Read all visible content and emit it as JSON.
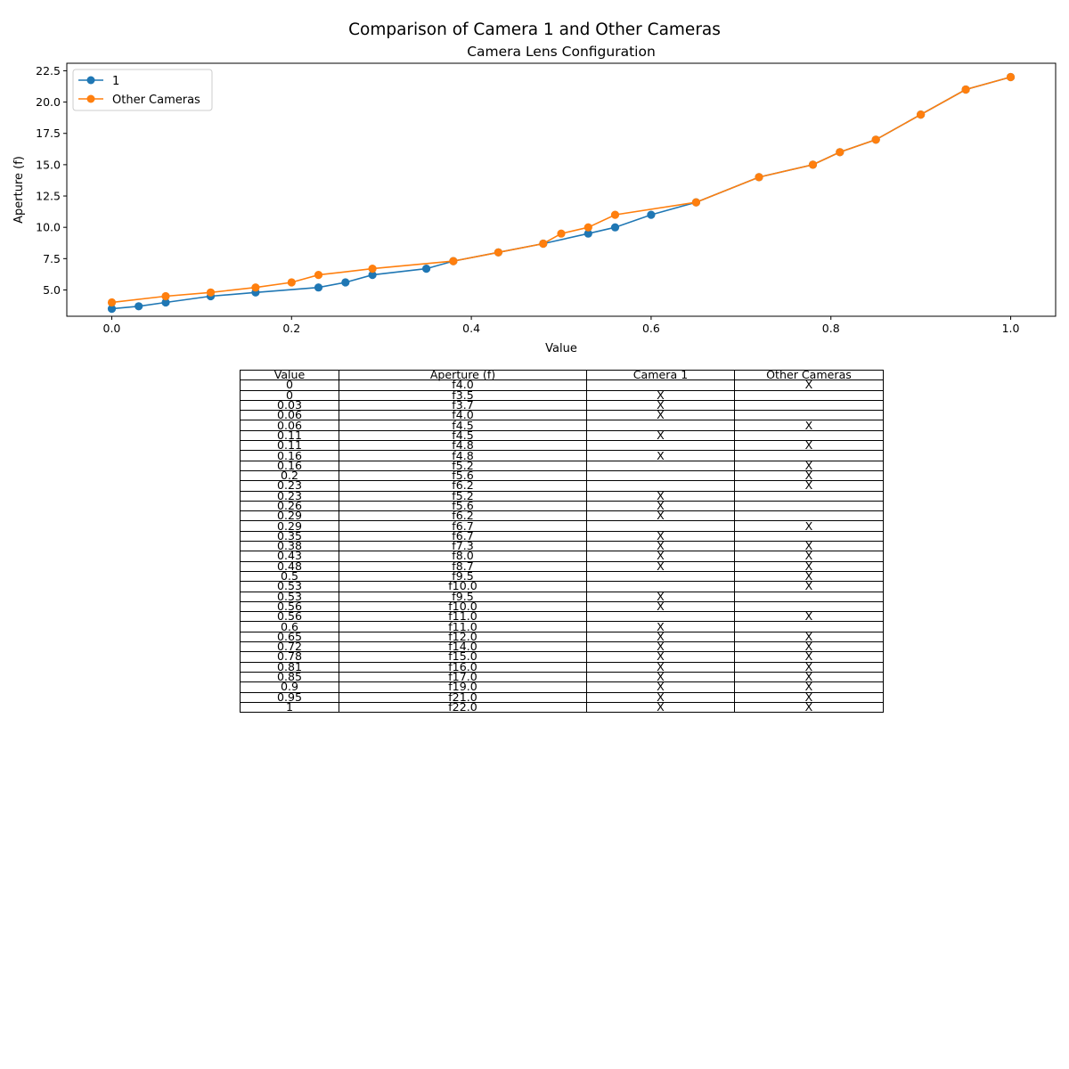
{
  "suptitle": "Comparison of Camera 1 and Other Cameras",
  "chart_data": {
    "type": "line",
    "title": "Camera Lens Configuration",
    "xlabel": "Value",
    "ylabel": "Aperture (f)",
    "xlim": [
      -0.05,
      1.05
    ],
    "ylim": [
      2.9,
      23.1
    ],
    "xticks": [
      0.0,
      0.2,
      0.4,
      0.6,
      0.8,
      1.0
    ],
    "xtick_labels": [
      "0.0",
      "0.2",
      "0.4",
      "0.6",
      "0.8",
      "1.0"
    ],
    "yticks": [
      5.0,
      7.5,
      10.0,
      12.5,
      15.0,
      17.5,
      20.0,
      22.5
    ],
    "ytick_labels": [
      "5.0",
      "7.5",
      "10.0",
      "12.5",
      "15.0",
      "17.5",
      "20.0",
      "22.5"
    ],
    "grid": false,
    "legend": "upper-left",
    "series": [
      {
        "name": "1",
        "color": "#1f77b4",
        "x": [
          0,
          0.03,
          0.06,
          0.11,
          0.16,
          0.23,
          0.26,
          0.29,
          0.35,
          0.38,
          0.43,
          0.48,
          0.53,
          0.56,
          0.6,
          0.65,
          0.72,
          0.78,
          0.81,
          0.85,
          0.9,
          0.95,
          1
        ],
        "y": [
          3.5,
          3.7,
          4.0,
          4.5,
          4.8,
          5.2,
          5.6,
          6.2,
          6.7,
          7.3,
          8.0,
          8.7,
          9.5,
          10.0,
          11.0,
          12.0,
          14.0,
          15.0,
          16.0,
          17.0,
          19.0,
          21.0,
          22.0
        ]
      },
      {
        "name": "Other Cameras",
        "color": "#ff7f0e",
        "x": [
          0,
          0.06,
          0.11,
          0.16,
          0.2,
          0.23,
          0.29,
          0.38,
          0.43,
          0.48,
          0.5,
          0.53,
          0.56,
          0.65,
          0.72,
          0.78,
          0.81,
          0.85,
          0.9,
          0.95,
          1
        ],
        "y": [
          4.0,
          4.5,
          4.8,
          5.2,
          5.6,
          6.2,
          6.7,
          7.3,
          8.0,
          8.7,
          9.5,
          10.0,
          11.0,
          12.0,
          14.0,
          15.0,
          16.0,
          17.0,
          19.0,
          21.0,
          22.0
        ]
      }
    ]
  },
  "table": {
    "columns": [
      "Value",
      "Aperture (f)",
      "Camera 1",
      "Other Cameras"
    ],
    "rows": [
      [
        "0",
        "f4.0",
        "",
        "X"
      ],
      [
        "0",
        "f3.5",
        "X",
        ""
      ],
      [
        "0.03",
        "f3.7",
        "X",
        ""
      ],
      [
        "0.06",
        "f4.0",
        "X",
        ""
      ],
      [
        "0.06",
        "f4.5",
        "",
        "X"
      ],
      [
        "0.11",
        "f4.5",
        "X",
        ""
      ],
      [
        "0.11",
        "f4.8",
        "",
        "X"
      ],
      [
        "0.16",
        "f4.8",
        "X",
        ""
      ],
      [
        "0.16",
        "f5.2",
        "",
        "X"
      ],
      [
        "0.2",
        "f5.6",
        "",
        "X"
      ],
      [
        "0.23",
        "f6.2",
        "",
        "X"
      ],
      [
        "0.23",
        "f5.2",
        "X",
        ""
      ],
      [
        "0.26",
        "f5.6",
        "X",
        ""
      ],
      [
        "0.29",
        "f6.2",
        "X",
        ""
      ],
      [
        "0.29",
        "f6.7",
        "",
        "X"
      ],
      [
        "0.35",
        "f6.7",
        "X",
        ""
      ],
      [
        "0.38",
        "f7.3",
        "X",
        "X"
      ],
      [
        "0.43",
        "f8.0",
        "X",
        "X"
      ],
      [
        "0.48",
        "f8.7",
        "X",
        "X"
      ],
      [
        "0.5",
        "f9.5",
        "",
        "X"
      ],
      [
        "0.53",
        "f10.0",
        "",
        "X"
      ],
      [
        "0.53",
        "f9.5",
        "X",
        ""
      ],
      [
        "0.56",
        "f10.0",
        "X",
        ""
      ],
      [
        "0.56",
        "f11.0",
        "",
        "X"
      ],
      [
        "0.6",
        "f11.0",
        "X",
        ""
      ],
      [
        "0.65",
        "f12.0",
        "X",
        "X"
      ],
      [
        "0.72",
        "f14.0",
        "X",
        "X"
      ],
      [
        "0.78",
        "f15.0",
        "X",
        "X"
      ],
      [
        "0.81",
        "f16.0",
        "X",
        "X"
      ],
      [
        "0.85",
        "f17.0",
        "X",
        "X"
      ],
      [
        "0.9",
        "f19.0",
        "X",
        "X"
      ],
      [
        "0.95",
        "f21.0",
        "X",
        "X"
      ],
      [
        "1",
        "f22.0",
        "X",
        "X"
      ]
    ]
  }
}
